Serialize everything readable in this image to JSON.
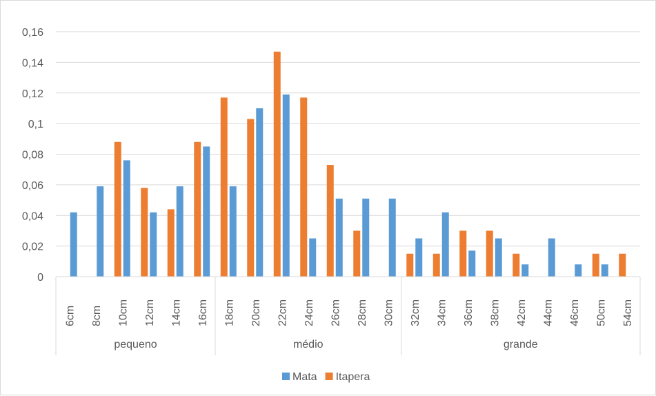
{
  "chart_data": {
    "type": "bar",
    "title": "",
    "xlabel": "",
    "ylabel": "",
    "ylim": [
      0,
      0.16
    ],
    "yticks": [
      0,
      0.02,
      0.04,
      0.06,
      0.08,
      0.1,
      0.12,
      0.14,
      0.16
    ],
    "ytick_labels": [
      "0",
      "0,02",
      "0,04",
      "0,06",
      "0,08",
      "0,1",
      "0,12",
      "0,14",
      "0,16"
    ],
    "grid": true,
    "legend_position": "bottom",
    "categories": [
      "6cm",
      "8cm",
      "10cm",
      "12cm",
      "14cm",
      "16cm",
      "18cm",
      "20cm",
      "22cm",
      "24cm",
      "26cm",
      "28cm",
      "30cm",
      "32cm",
      "34cm",
      "36cm",
      "38cm",
      "42cm",
      "44cm",
      "46cm",
      "50cm",
      "54cm"
    ],
    "groups": [
      {
        "label": "pequeno",
        "start": 0,
        "end": 5
      },
      {
        "label": "médio",
        "start": 6,
        "end": 12
      },
      {
        "label": "grande",
        "start": 13,
        "end": 21
      }
    ],
    "series": [
      {
        "name": "Itapera",
        "color": "#ed7d31",
        "values": [
          0,
          0,
          0.088,
          0.058,
          0.044,
          0.088,
          0.117,
          0.103,
          0.147,
          0.117,
          0.073,
          0.03,
          0,
          0.015,
          0.015,
          0.03,
          0.03,
          0.015,
          0,
          0,
          0.015,
          0.015
        ]
      },
      {
        "name": "Mata",
        "color": "#5b9bd5",
        "values": [
          0.042,
          0.059,
          0.076,
          0.042,
          0.059,
          0.085,
          0.059,
          0.11,
          0.119,
          0.025,
          0.051,
          0.051,
          0.051,
          0.025,
          0.042,
          0.017,
          0.025,
          0.008,
          0.025,
          0.008,
          0.008,
          0
        ]
      }
    ],
    "legend_order": [
      "Mata",
      "Itapera"
    ]
  }
}
